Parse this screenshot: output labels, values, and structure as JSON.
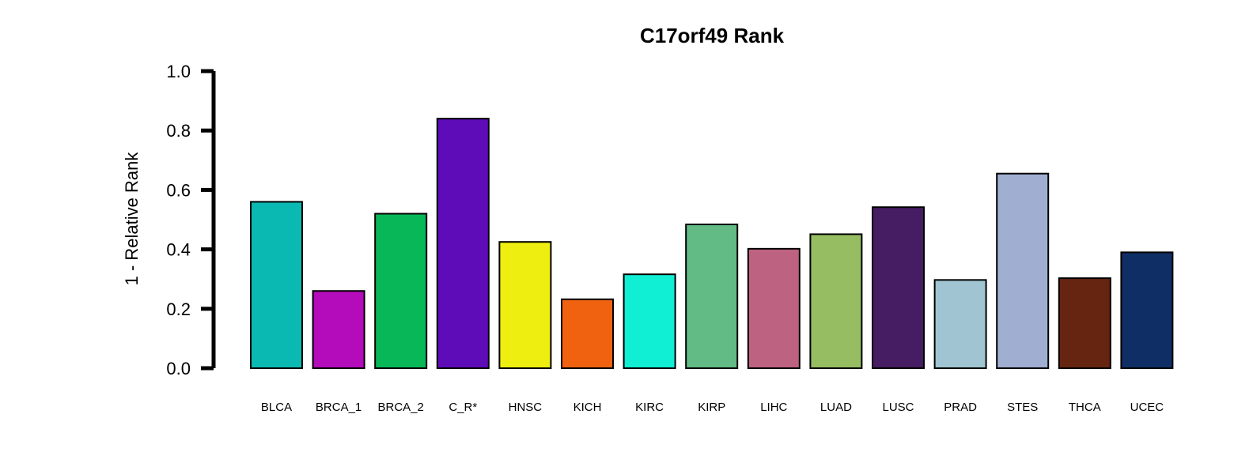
{
  "chart_data": {
    "type": "bar",
    "title": "C17orf49 Rank",
    "xlabel": "",
    "ylabel": "1 - Relative Rank",
    "ylim": [
      0,
      1
    ],
    "yticks": [
      "0.0",
      "0.2",
      "0.4",
      "0.6",
      "0.8",
      "1.0"
    ],
    "grid": false,
    "legend": "none",
    "categories": [
      "BLCA",
      "BRCA_1",
      "BRCA_2",
      "C_R*",
      "HNSC",
      "KICH",
      "KIRC",
      "KIRP",
      "LIHC",
      "LUAD",
      "LUSC",
      "PRAD",
      "STES",
      "THCA",
      "UCEC"
    ],
    "values": [
      0.56,
      0.26,
      0.52,
      0.84,
      0.425,
      0.232,
      0.316,
      0.484,
      0.402,
      0.451,
      0.542,
      0.297,
      0.655,
      0.303,
      0.39
    ],
    "colors": [
      "#0BB9B3",
      "#B40BBB",
      "#08B858",
      "#5E0BB8",
      "#EEEE10",
      "#F06210",
      "#10EED4",
      "#62BB84",
      "#BD6280",
      "#97BD62",
      "#461C62",
      "#A0C4D2",
      "#A0AED2",
      "#662510",
      "#0F2E65"
    ]
  }
}
